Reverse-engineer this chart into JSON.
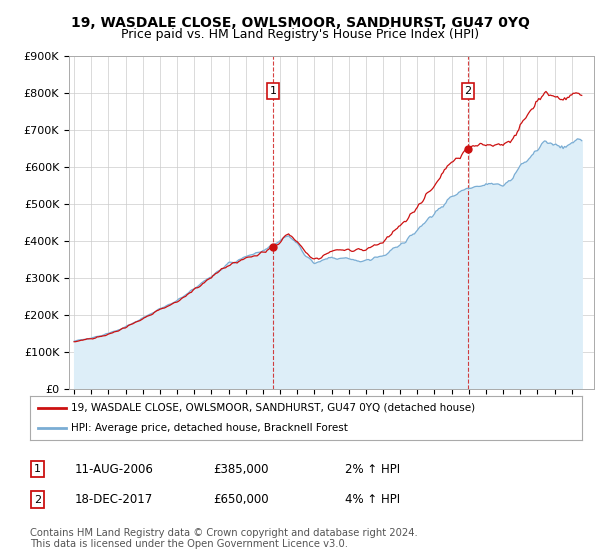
{
  "title": "19, WASDALE CLOSE, OWLSMOOR, SANDHURST, GU47 0YQ",
  "subtitle": "Price paid vs. HM Land Registry's House Price Index (HPI)",
  "ylabel_ticks": [
    "£0",
    "£100K",
    "£200K",
    "£300K",
    "£400K",
    "£500K",
    "£600K",
    "£700K",
    "£800K",
    "£900K"
  ],
  "ytick_values": [
    0,
    100000,
    200000,
    300000,
    400000,
    500000,
    600000,
    700000,
    800000,
    900000
  ],
  "ylim": [
    0,
    900000
  ],
  "xlim_start": 1994.7,
  "xlim_end": 2025.3,
  "sale1_x": 2006.6,
  "sale1_y": 385000,
  "sale1_label": "1",
  "sale2_x": 2017.95,
  "sale2_y": 650000,
  "sale2_label": "2",
  "hpi_color": "#7aadd4",
  "hpi_fill_color": "#ddeef8",
  "price_color": "#cc1111",
  "sale_marker_color": "#cc1111",
  "legend_line1": "19, WASDALE CLOSE, OWLSMOOR, SANDHURST, GU47 0YQ (detached house)",
  "legend_line2": "HPI: Average price, detached house, Bracknell Forest",
  "table_row1": [
    "1",
    "11-AUG-2006",
    "£385,000",
    "2% ↑ HPI"
  ],
  "table_row2": [
    "2",
    "18-DEC-2017",
    "£650,000",
    "4% ↑ HPI"
  ],
  "footer": "Contains HM Land Registry data © Crown copyright and database right 2024.\nThis data is licensed under the Open Government Licence v3.0.",
  "bg_color": "#ffffff",
  "grid_color": "#cccccc",
  "title_fontsize": 10,
  "subtitle_fontsize": 9,
  "tick_fontsize": 8
}
